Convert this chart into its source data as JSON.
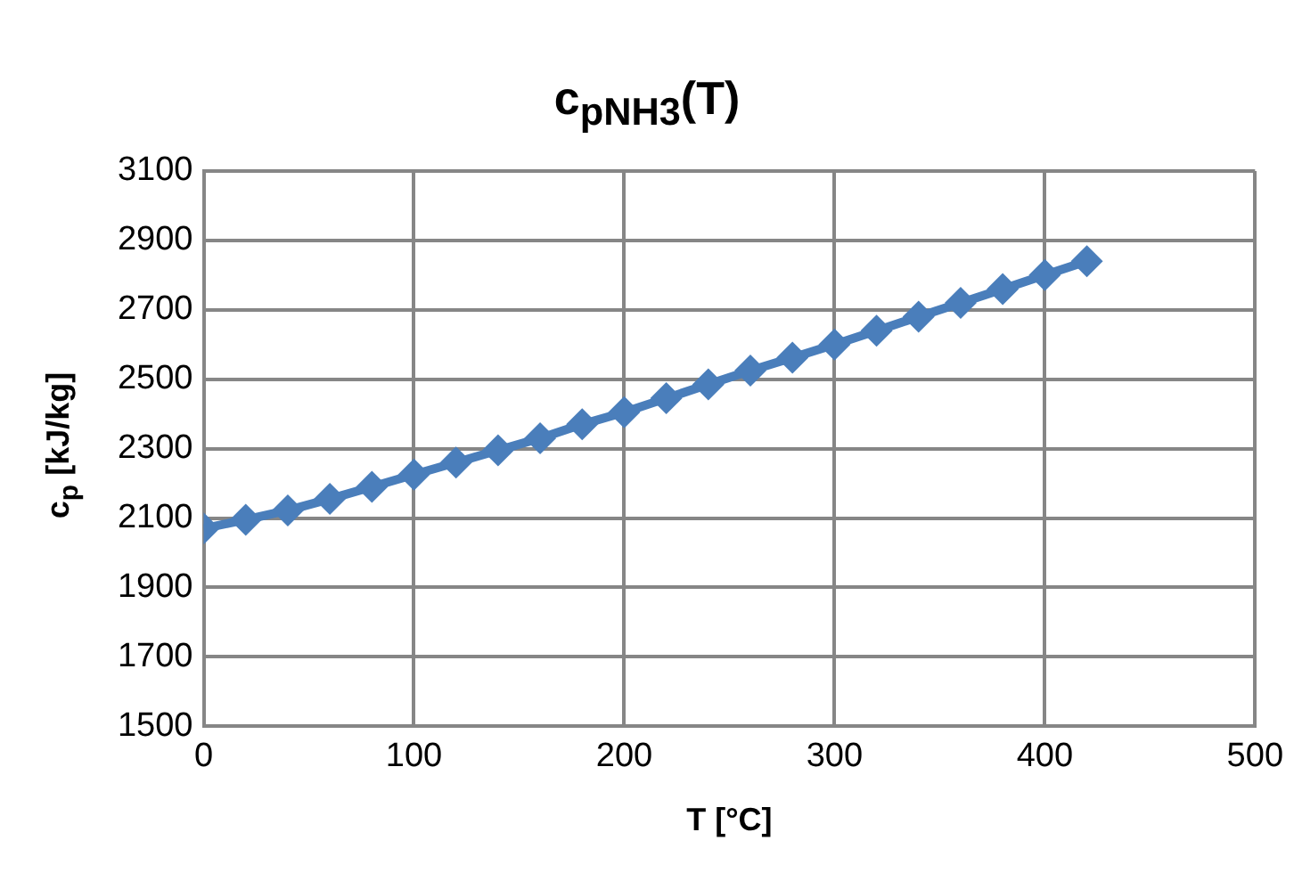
{
  "chart_data": {
    "type": "line",
    "title": "c$_{pNH3}$(T)",
    "xlabel": "T [°C]",
    "ylabel": "c$_{p}$ [kJ/kg]",
    "x": [
      0,
      20,
      40,
      60,
      80,
      100,
      120,
      140,
      160,
      180,
      200,
      220,
      240,
      260,
      280,
      300,
      320,
      340,
      360,
      380,
      400,
      420
    ],
    "series": [
      {
        "color": "#4a7ebb",
        "values": [
          2070,
          2095,
          2122,
          2155,
          2190,
          2225,
          2260,
          2295,
          2330,
          2370,
          2405,
          2445,
          2485,
          2525,
          2562,
          2600,
          2640,
          2680,
          2720,
          2760,
          2800,
          2840
        ]
      }
    ],
    "xlim": [
      0,
      500
    ],
    "xticks": [
      0,
      100,
      200,
      300,
      400,
      500
    ],
    "ylim": [
      1500,
      3100
    ],
    "yticks": [
      1500,
      1700,
      1900,
      2100,
      2300,
      2500,
      2700,
      2900,
      3100
    ],
    "grid": true,
    "legend": false,
    "marker": "diamond",
    "line_style": "solid"
  }
}
